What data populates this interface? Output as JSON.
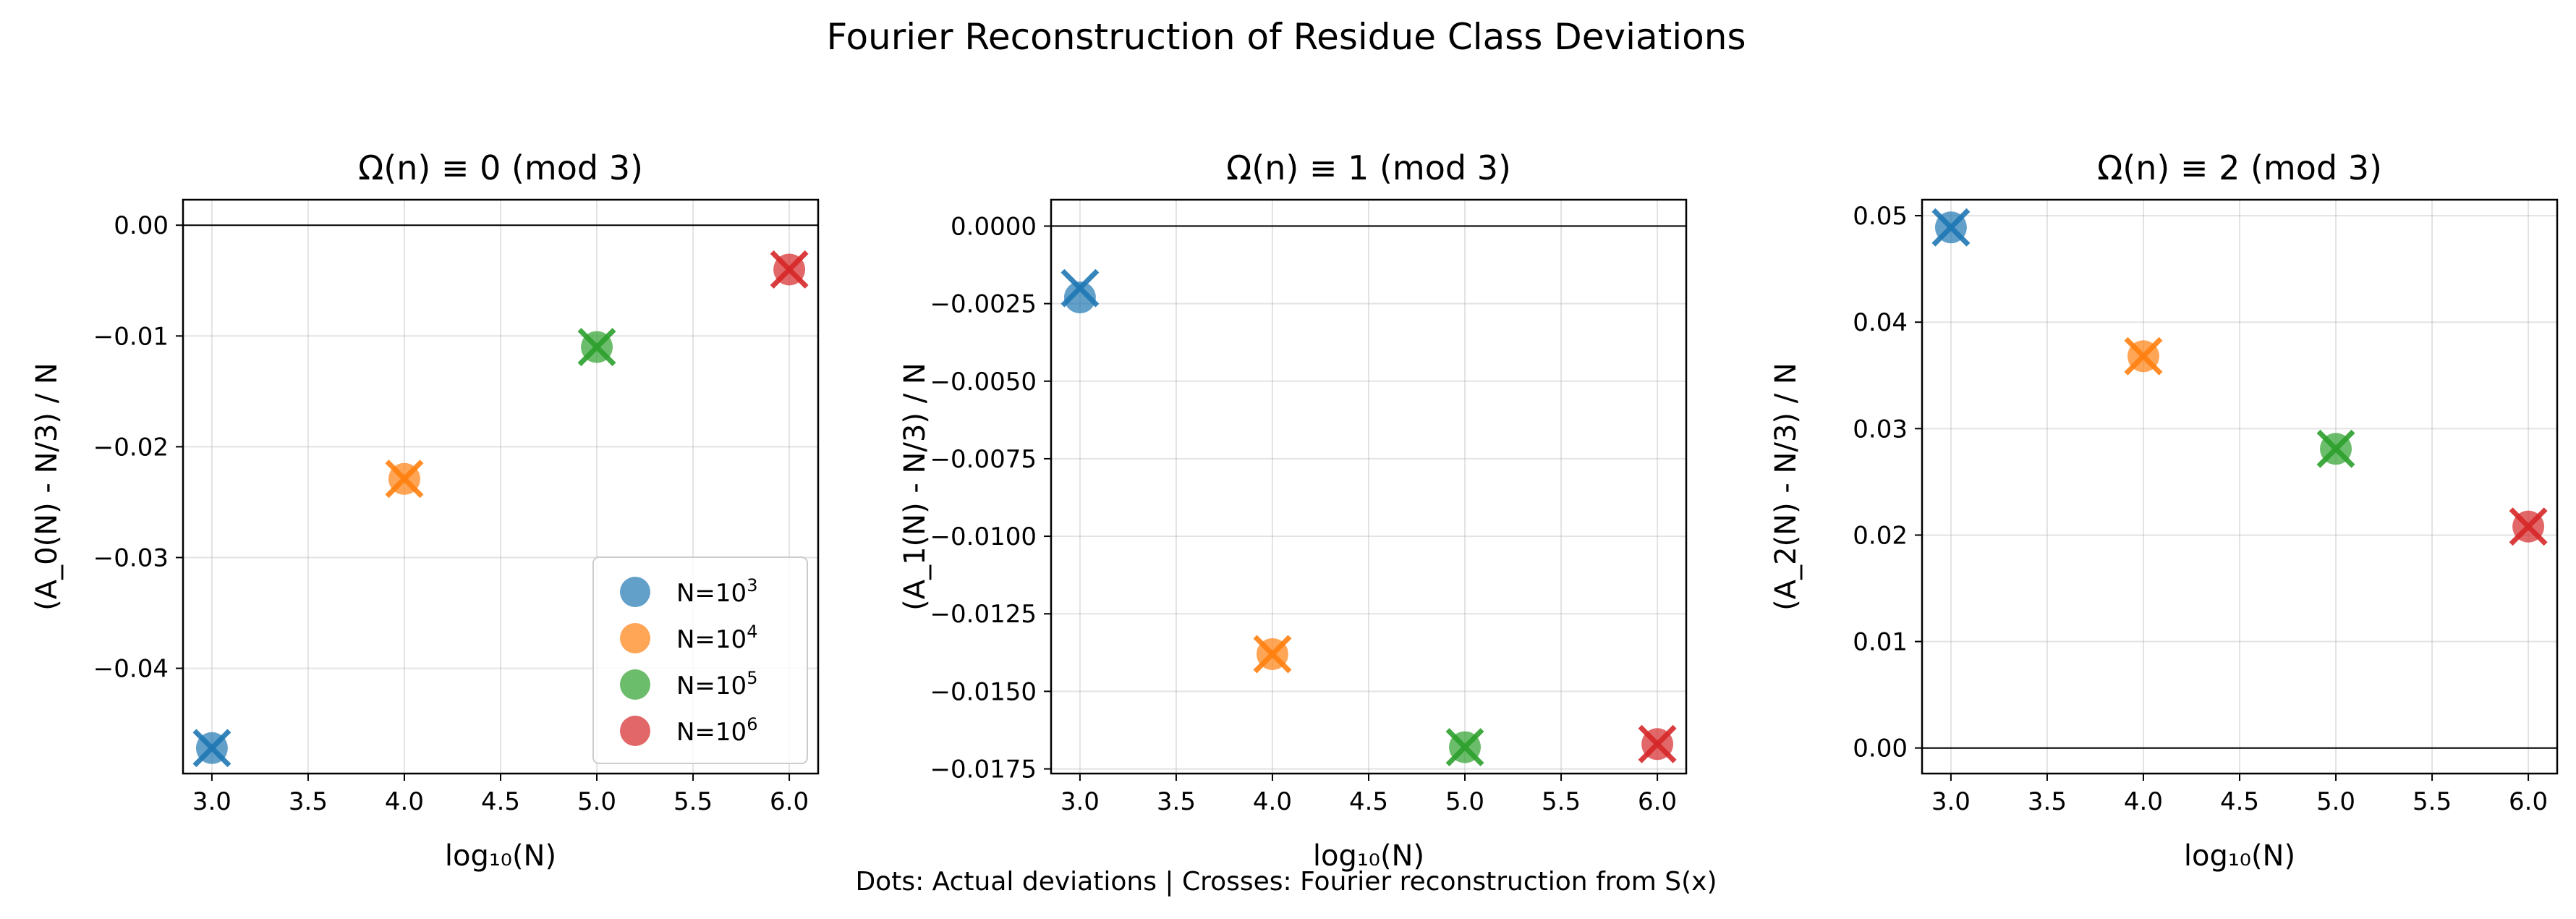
{
  "figure": {
    "suptitle": "Fourier Reconstruction of Residue Class Deviations",
    "footnote": "Dots: Actual deviations | Crosses: Fourier reconstruction from S(x)"
  },
  "colors": {
    "N=10^3": "#1f77b4",
    "N=10^4": "#ff7f0e",
    "N=10^5": "#2ca02c",
    "N=10^6": "#d62728"
  },
  "chart_data": [
    {
      "type": "scatter",
      "title": "Ω(n) ≡ 0 (mod 3)",
      "xlabel": "log₁₀(N)",
      "ylabel": "(A_0(N) - N/3) / N",
      "xlim": [
        2.85,
        6.15
      ],
      "ylim": [
        -0.0495,
        0.0023
      ],
      "xticks": [
        3.0,
        3.5,
        4.0,
        4.5,
        5.0,
        5.5,
        6.0
      ],
      "xticklabels": [
        "3.0",
        "3.5",
        "4.0",
        "4.5",
        "5.0",
        "5.5",
        "6.0"
      ],
      "yticks": [
        0.0,
        -0.01,
        -0.02,
        -0.03,
        -0.04
      ],
      "yticklabels": [
        "0.00",
        "−0.01",
        "−0.02",
        "−0.03",
        "−0.04"
      ],
      "hline": 0,
      "grid": true,
      "legend": {
        "location": "lower right",
        "entries": [
          {
            "base": "N=10",
            "exp": "3"
          },
          {
            "base": "N=10",
            "exp": "4"
          },
          {
            "base": "N=10",
            "exp": "5"
          },
          {
            "base": "N=10",
            "exp": "6"
          }
        ]
      },
      "points": [
        {
          "x": 3,
          "actual": -0.0472,
          "fourier": -0.0472
        },
        {
          "x": 4,
          "actual": -0.0229,
          "fourier": -0.0229
        },
        {
          "x": 5,
          "actual": -0.011,
          "fourier": -0.011
        },
        {
          "x": 6,
          "actual": -0.004,
          "fourier": -0.004
        }
      ]
    },
    {
      "type": "scatter",
      "title": "Ω(n) ≡ 1 (mod 3)",
      "xlabel": "log₁₀(N)",
      "ylabel": "(A_1(N) - N/3) / N",
      "xlim": [
        2.85,
        6.15
      ],
      "ylim": [
        -0.01765,
        0.00085
      ],
      "xticks": [
        3.0,
        3.5,
        4.0,
        4.5,
        5.0,
        5.5,
        6.0
      ],
      "xticklabels": [
        "3.0",
        "3.5",
        "4.0",
        "4.5",
        "5.0",
        "5.5",
        "6.0"
      ],
      "yticks": [
        0.0,
        -0.0025,
        -0.005,
        -0.0075,
        -0.01,
        -0.0125,
        -0.015,
        -0.0175
      ],
      "yticklabels": [
        "0.0000",
        "−0.0025",
        "−0.0050",
        "−0.0075",
        "−0.0100",
        "−0.0125",
        "−0.0150",
        "−0.0175"
      ],
      "hline": 0,
      "grid": true,
      "points": [
        {
          "x": 3,
          "actual": -0.0023,
          "fourier": -0.002
        },
        {
          "x": 4,
          "actual": -0.0138,
          "fourier": -0.0138
        },
        {
          "x": 5,
          "actual": -0.0168,
          "fourier": -0.0168
        },
        {
          "x": 6,
          "actual": -0.0167,
          "fourier": -0.0167
        }
      ]
    },
    {
      "type": "scatter",
      "title": "Ω(n) ≡ 2 (mod 3)",
      "xlabel": "log₁₀(N)",
      "ylabel": "(A_2(N) - N/3) / N",
      "xlim": [
        2.85,
        6.15
      ],
      "ylim": [
        -0.0024,
        0.0515
      ],
      "xticks": [
        3.0,
        3.5,
        4.0,
        4.5,
        5.0,
        5.5,
        6.0
      ],
      "xticklabels": [
        "3.0",
        "3.5",
        "4.0",
        "4.5",
        "5.0",
        "5.5",
        "6.0"
      ],
      "yticks": [
        0.0,
        0.01,
        0.02,
        0.03,
        0.04,
        0.05
      ],
      "yticklabels": [
        "0.00",
        "0.01",
        "0.02",
        "0.03",
        "0.04",
        "0.05"
      ],
      "hline": 0,
      "grid": true,
      "points": [
        {
          "x": 3,
          "actual": 0.0489,
          "fourier": 0.0489
        },
        {
          "x": 4,
          "actual": 0.0368,
          "fourier": 0.0368
        },
        {
          "x": 5,
          "actual": 0.0281,
          "fourier": 0.0281
        },
        {
          "x": 6,
          "actual": 0.0208,
          "fourier": 0.0208
        }
      ]
    }
  ]
}
